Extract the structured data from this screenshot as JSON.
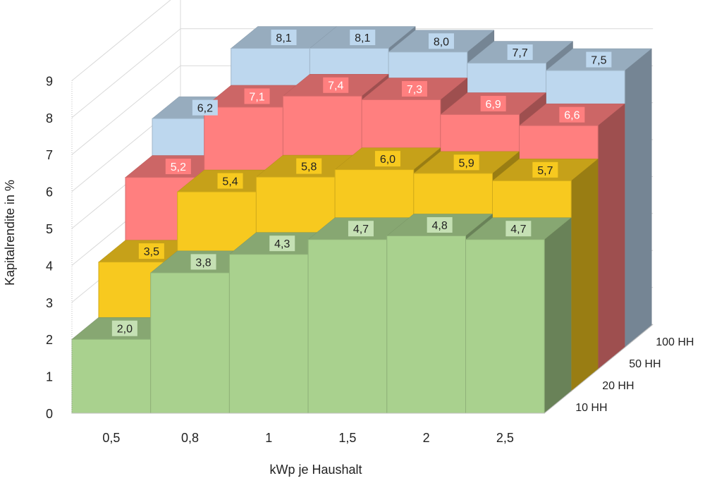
{
  "chart_data": {
    "type": "bar",
    "style": "3d-column",
    "title": "",
    "xlabel": "kWp je Haushalt",
    "ylabel": "Kapitalrendite in %",
    "ylim": [
      0,
      9
    ],
    "y_ticks": [
      "0",
      "1",
      "2",
      "3",
      "4",
      "5",
      "6",
      "7",
      "8",
      "9"
    ],
    "grid": true,
    "categories": [
      "0,5",
      "0,8",
      "1",
      "1,5",
      "2",
      "2,5"
    ],
    "series": [
      {
        "name": "10 HH",
        "values": [
          2.0,
          3.8,
          4.3,
          4.7,
          4.8,
          4.7
        ],
        "labels": [
          "2,0",
          "3,8",
          "4,3",
          "4,7",
          "4,8",
          "4,7"
        ],
        "color": "#a9d18e",
        "label_bg": "#c5e0b4",
        "label_color": "#222222"
      },
      {
        "name": "20 HH",
        "values": [
          3.5,
          5.4,
          5.8,
          6.0,
          5.9,
          5.7
        ],
        "labels": [
          "3,5",
          "5,4",
          "5,8",
          "6,0",
          "5,9",
          "5,7"
        ],
        "color": "#f7c91f",
        "label_bg": "#f7c91f",
        "label_color": "#222222"
      },
      {
        "name": "50 HH",
        "values": [
          5.2,
          7.1,
          7.4,
          7.3,
          6.9,
          6.6
        ],
        "labels": [
          "5,2",
          "7,1",
          "7,4",
          "7,3",
          "6,9",
          "6,6"
        ],
        "color": "#ff7f7f",
        "label_bg": "#ff7f7f",
        "label_color": "#ffffff"
      },
      {
        "name": "100 HH",
        "values": [
          6.2,
          8.1,
          8.1,
          8.0,
          7.7,
          7.5
        ],
        "labels": [
          "6,2",
          "8,1",
          "8,1",
          "8,0",
          "7,7",
          "7,5"
        ],
        "color": "#bdd7ee",
        "label_bg": "#bdd7ee",
        "label_color": "#222222"
      }
    ]
  }
}
